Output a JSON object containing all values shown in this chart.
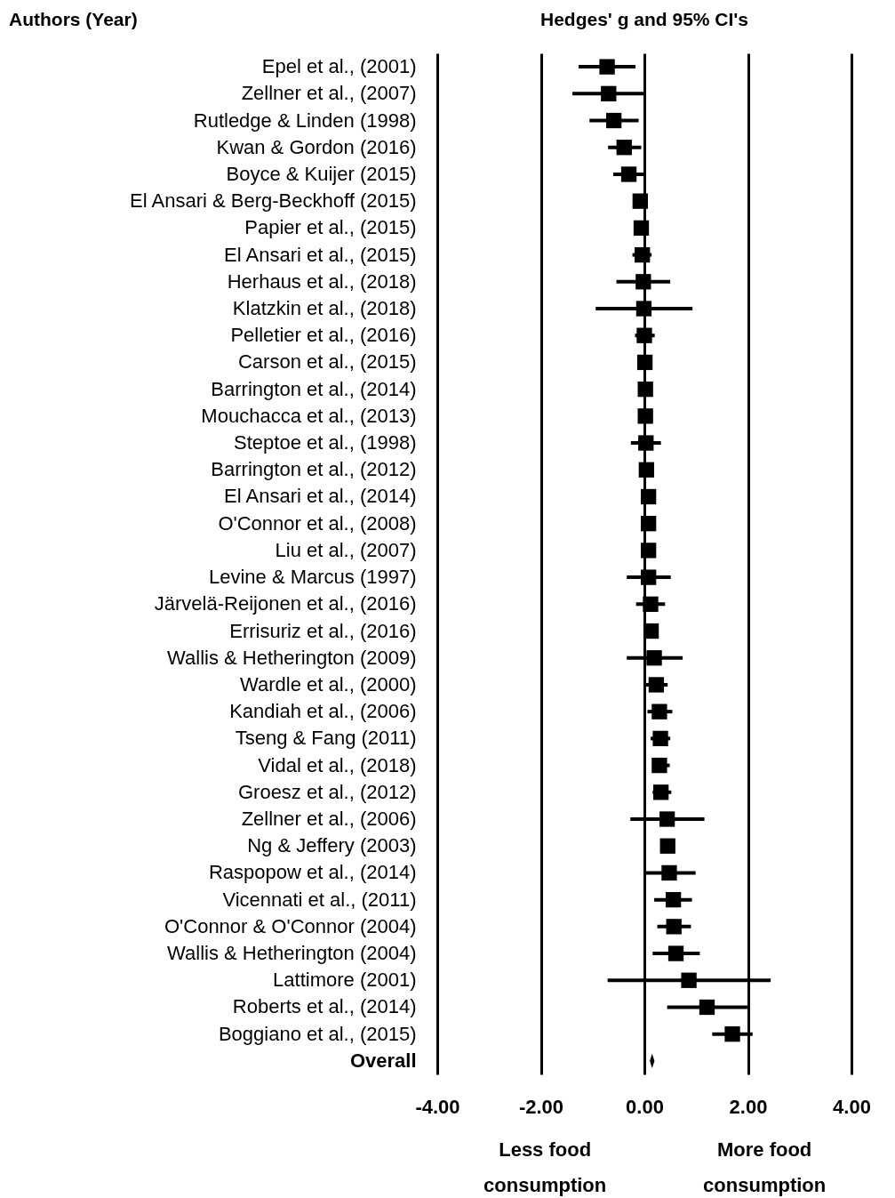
{
  "chart_data": {
    "type": "scatter",
    "orientation": "horizontal",
    "title": "Hedges' g and 95% CI's",
    "categories": [
      "Epel et al., (2001)",
      "Zellner et al., (2007)",
      "Rutledge & Linden (1998)",
      "Kwan & Gordon (2016)",
      "Boyce & Kuijer (2015)",
      "El Ansari & Berg-Beckhoff (2015)",
      "Papier et al., (2015)",
      "El Ansari et al., (2015)",
      "Herhaus et al., (2018)",
      "Klatzkin et al., (2018)",
      "Pelletier et al., (2016)",
      "Carson et al., (2015)",
      "Barrington et al., (2014)",
      "Mouchacca et al., (2013)",
      "Steptoe et al., (1998)",
      "Barrington et al., (2012)",
      "El Ansari et al., (2014)",
      "O'Connor et al., (2008)",
      "Liu et al., (2007)",
      "Levine & Marcus (1997)",
      "Järvelä-Reijonen et al., (2016)",
      "Errisuriz et al., (2016)",
      "Wallis & Hetherington (2009)",
      "Wardle et al., (2000)",
      "Kandiah et al., (2006)",
      "Tseng & Fang (2011)",
      "Vidal et al., (2018)",
      "Groesz et al., (2012)",
      "Zellner et al., (2006)",
      "Ng & Jeffery (2003)",
      "Raspopow et al., (2014)",
      "Vicennati et al., (2011)",
      "O'Connor & O'Connor (2004)",
      "Wallis & Hetherington (2004)",
      "Lattimore (2001)",
      "Roberts et al., (2014)",
      "Boggiano et al., (2015)",
      "Overall"
    ],
    "series": [
      {
        "color": "#000000",
        "marker": "square",
        "values": [
          -0.72,
          -0.69,
          -0.59,
          -0.39,
          -0.3,
          -0.08,
          -0.06,
          -0.04,
          -0.02,
          -0.01,
          0.0,
          0.01,
          0.02,
          0.02,
          0.03,
          0.04,
          0.08,
          0.08,
          0.08,
          0.08,
          0.12,
          0.13,
          0.19,
          0.23,
          0.29,
          0.31,
          0.29,
          0.32,
          0.44,
          0.45,
          0.48,
          0.56,
          0.57,
          0.61,
          0.86,
          1.21,
          1.7,
          null
        ],
        "errors": [
          [
            -1.27,
            -0.17
          ],
          [
            -1.39,
            0.01
          ],
          [
            -1.06,
            -0.11
          ],
          [
            -0.7,
            -0.06
          ],
          [
            -0.6,
            0.01
          ],
          null,
          null,
          [
            -0.23,
            0.14
          ],
          [
            -0.54,
            0.5
          ],
          [
            -0.94,
            0.93
          ],
          [
            -0.18,
            0.2
          ],
          null,
          null,
          null,
          [
            -0.26,
            0.32
          ],
          null,
          null,
          null,
          null,
          [
            -0.34,
            0.51
          ],
          [
            -0.16,
            0.4
          ],
          null,
          [
            -0.34,
            0.74
          ],
          [
            0.02,
            0.45
          ],
          [
            0.06,
            0.54
          ],
          [
            0.12,
            0.5
          ],
          [
            0.15,
            0.49
          ],
          [
            0.16,
            0.52
          ],
          [
            -0.27,
            1.16
          ],
          null,
          [
            0.03,
            0.99
          ],
          [
            0.19,
            0.92
          ],
          [
            0.25,
            0.9
          ],
          [
            0.16,
            1.07
          ],
          [
            -0.71,
            2.44
          ],
          [
            0.44,
            1.99
          ],
          [
            1.31,
            2.09
          ],
          null
        ]
      },
      {
        "color": "#000000",
        "marker": "diamond",
        "values": [
          null,
          null,
          null,
          null,
          null,
          null,
          null,
          null,
          null,
          null,
          null,
          null,
          null,
          null,
          null,
          null,
          null,
          null,
          null,
          null,
          null,
          null,
          null,
          null,
          null,
          null,
          null,
          null,
          null,
          null,
          null,
          null,
          null,
          null,
          null,
          null,
          null,
          0.15
        ]
      }
    ],
    "xlim": [
      -4,
      4
    ],
    "xticks": [
      {
        "value": -4,
        "label": "-4.00"
      },
      {
        "value": -2,
        "label": "-2.00"
      },
      {
        "value": 0,
        "label": "0.00"
      },
      {
        "value": 2,
        "label": "2.00"
      },
      {
        "value": 4,
        "label": "4.00"
      }
    ],
    "grid": "x",
    "annotations": [
      "Authors (Year)",
      "Less food consumption",
      "More food consumption"
    ]
  }
}
